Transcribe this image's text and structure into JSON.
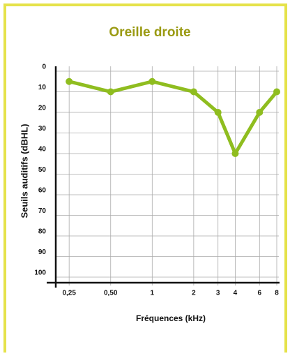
{
  "chart_data": {
    "type": "line",
    "title": "Oreille droite",
    "x_label": "Fréquences (kHz)",
    "y_label": "Seuils auditifs (dBHL)",
    "x": [
      0.25,
      0.5,
      1,
      2,
      3,
      4,
      6,
      8
    ],
    "values": [
      5,
      10,
      5,
      10,
      20,
      40,
      20,
      10
    ],
    "color": "#8fbd1f",
    "x_scale": "log",
    "y_inverted": true,
    "xlim": [
      0.2,
      8
    ],
    "ylim": [
      0,
      100
    ],
    "xticks": [
      {
        "value": 0.25,
        "label": "0,25"
      },
      {
        "value": 0.5,
        "label": "0,50"
      },
      1,
      2,
      3,
      4,
      6,
      8
    ],
    "yticks": [
      0,
      10,
      20,
      30,
      40,
      50,
      60,
      70,
      80,
      90,
      100
    ],
    "grid": true
  }
}
